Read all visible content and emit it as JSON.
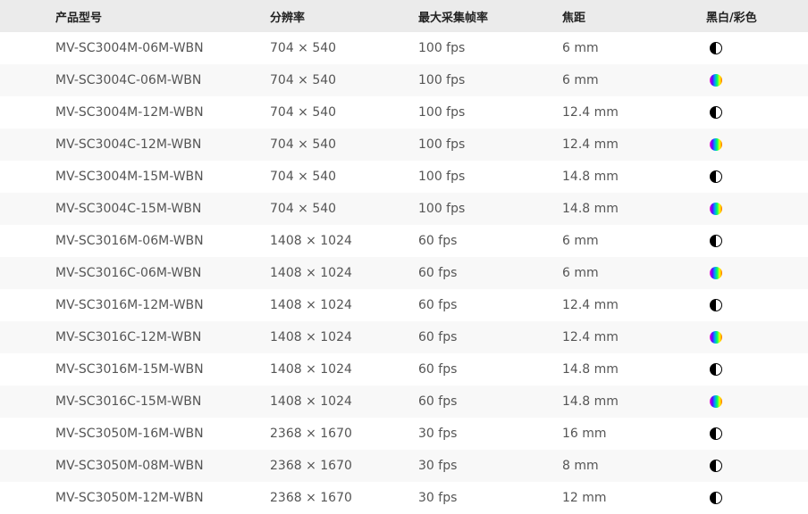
{
  "headers": [
    "产品型号",
    "分辨率",
    "最大采集帧率",
    "焦距",
    "黑白/彩色"
  ],
  "rows": [
    {
      "model": "MV-SC3004M-06M-WBN",
      "resolution": "704 × 540",
      "fps": "100 fps",
      "focal": "6 mm",
      "type": "mono"
    },
    {
      "model": "MV-SC3004C-06M-WBN",
      "resolution": "704 × 540",
      "fps": "100 fps",
      "focal": "6 mm",
      "type": "color"
    },
    {
      "model": "MV-SC3004M-12M-WBN",
      "resolution": "704 × 540",
      "fps": "100 fps",
      "focal": "12.4 mm",
      "type": "mono"
    },
    {
      "model": "MV-SC3004C-12M-WBN",
      "resolution": "704 × 540",
      "fps": "100 fps",
      "focal": "12.4 mm",
      "type": "color"
    },
    {
      "model": "MV-SC3004M-15M-WBN",
      "resolution": "704 × 540",
      "fps": "100 fps",
      "focal": "14.8 mm",
      "type": "mono"
    },
    {
      "model": "MV-SC3004C-15M-WBN",
      "resolution": "704 × 540",
      "fps": "100 fps",
      "focal": "14.8 mm",
      "type": "color"
    },
    {
      "model": "MV-SC3016M-06M-WBN",
      "resolution": "1408 × 1024",
      "fps": "60 fps",
      "focal": "6 mm",
      "type": "mono"
    },
    {
      "model": "MV-SC3016C-06M-WBN",
      "resolution": "1408 × 1024",
      "fps": "60 fps",
      "focal": "6 mm",
      "type": "color"
    },
    {
      "model": "MV-SC3016M-12M-WBN",
      "resolution": "1408 × 1024",
      "fps": "60 fps",
      "focal": "12.4 mm",
      "type": "mono"
    },
    {
      "model": "MV-SC3016C-12M-WBN",
      "resolution": "1408 × 1024",
      "fps": "60 fps",
      "focal": "12.4 mm",
      "type": "color"
    },
    {
      "model": "MV-SC3016M-15M-WBN",
      "resolution": "1408 × 1024",
      "fps": "60 fps",
      "focal": "14.8 mm",
      "type": "mono"
    },
    {
      "model": "MV-SC3016C-15M-WBN",
      "resolution": "1408 × 1024",
      "fps": "60 fps",
      "focal": "14.8 mm",
      "type": "color"
    },
    {
      "model": "MV-SC3050M-16M-WBN",
      "resolution": "2368 × 1670",
      "fps": "30 fps",
      "focal": "16 mm",
      "type": "mono"
    },
    {
      "model": "MV-SC3050M-08M-WBN",
      "resolution": "2368 × 1670",
      "fps": "30 fps",
      "focal": "8 mm",
      "type": "mono"
    },
    {
      "model": "MV-SC3050M-12M-WBN",
      "resolution": "2368 × 1670",
      "fps": "30 fps",
      "focal": "12 mm",
      "type": "mono"
    }
  ],
  "icons": {
    "mono": "half-circle-bw-icon",
    "color": "rainbow-circle-icon"
  },
  "colors": {
    "header_bg": "#ebebeb",
    "stripe_bg": "#f8f8f8",
    "text": "#555555"
  }
}
